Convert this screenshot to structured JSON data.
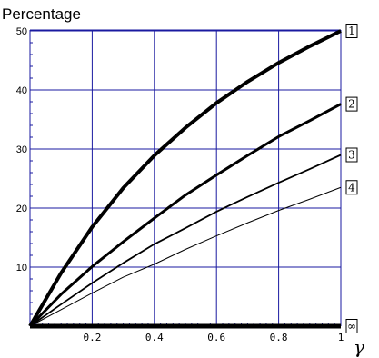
{
  "chart_data": {
    "type": "line",
    "ylabel": "Percentage",
    "xlabel": "γ",
    "xlim": [
      0,
      1
    ],
    "ylim": [
      0,
      51
    ],
    "grid": true,
    "grid_color": "#1a1aa0",
    "line_color": "#000000",
    "x_ticks": [
      0.2,
      0.4,
      0.6,
      0.8,
      1
    ],
    "x_tick_labels": [
      "0.2",
      "0.4",
      "0.6",
      "0.8",
      "1"
    ],
    "y_ticks": [
      10,
      20,
      30,
      40,
      50
    ],
    "y_tick_labels": [
      "10",
      "20",
      "30",
      "40",
      "50"
    ],
    "x": [
      0,
      0.1,
      0.2,
      0.3,
      0.4,
      0.5,
      0.6,
      0.7,
      0.8,
      0.9,
      1.0
    ],
    "series": [
      {
        "name": "1",
        "values": [
          0,
          9,
          16.8,
          23.4,
          28.9,
          33.6,
          37.8,
          41.4,
          44.6,
          47.4,
          50.0
        ],
        "weight": 4
      },
      {
        "name": "2",
        "values": [
          0,
          5.4,
          10.1,
          14.3,
          18.3,
          22.2,
          25.6,
          28.9,
          32.1,
          34.8,
          37.6
        ],
        "weight": 3
      },
      {
        "name": "3",
        "values": [
          0,
          3.7,
          7.3,
          10.7,
          13.9,
          16.6,
          19.4,
          21.9,
          24.3,
          26.6,
          29.0
        ],
        "weight": 1.8
      },
      {
        "name": "4",
        "values": [
          0,
          2.8,
          5.6,
          8.3,
          10.5,
          13.0,
          15.3,
          17.5,
          19.6,
          21.5,
          23.5
        ],
        "weight": 1
      },
      {
        "name": "∞",
        "values": [
          0,
          0,
          0,
          0,
          0,
          0,
          0,
          0,
          0,
          0,
          0
        ],
        "weight": 5
      }
    ]
  }
}
